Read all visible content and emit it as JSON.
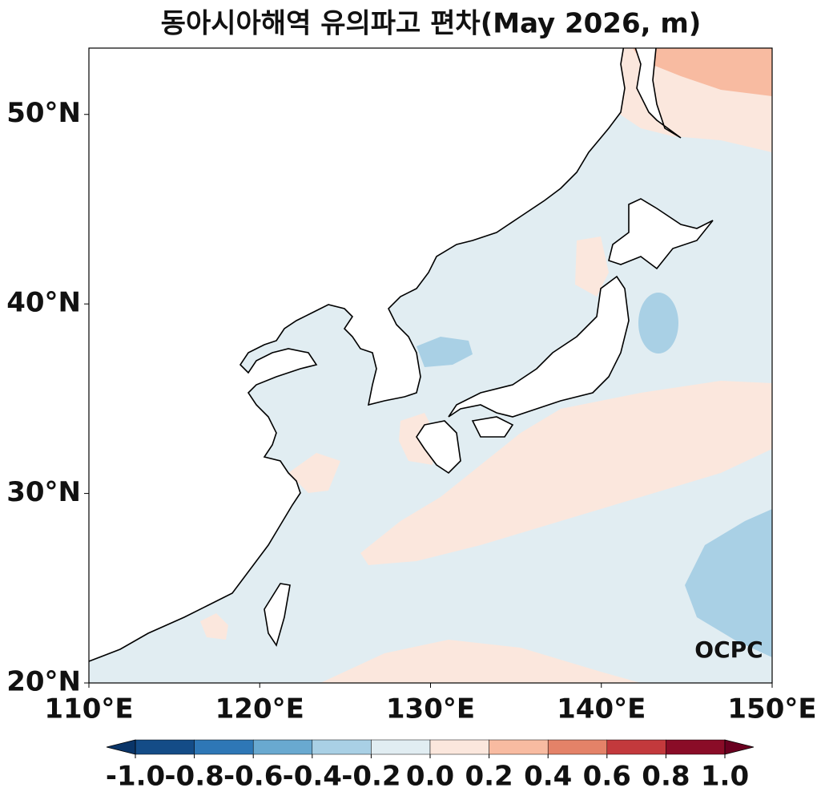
{
  "title": "동아시아해역 유의파고 편차(May 2026, m)",
  "xlim": [
    110,
    150
  ],
  "ylim": [
    20,
    53.5
  ],
  "xticks": [
    {
      "value": 110,
      "label": "110°E"
    },
    {
      "value": 120,
      "label": "120°E"
    },
    {
      "value": 130,
      "label": "130°E"
    },
    {
      "value": 140,
      "label": "140°E"
    },
    {
      "value": 150,
      "label": "150°E"
    }
  ],
  "yticks": [
    {
      "value": 20,
      "label": "20°N"
    },
    {
      "value": 30,
      "label": "30°N"
    },
    {
      "value": 40,
      "label": "40°N"
    },
    {
      "value": 50,
      "label": "50°N"
    }
  ],
  "colorbar": {
    "ticks": [
      {
        "value": -1,
        "label": "-1.0"
      },
      -0.8,
      -0.6,
      -0.4,
      -0.2,
      {
        "value": 0,
        "label": "0.0"
      },
      0.2,
      0.4,
      0.6,
      0.8,
      {
        "value": 1,
        "label": "1.0"
      }
    ],
    "colors": [
      "#144c87",
      "#2e77b6",
      "#69a9d0",
      "#a9d0e5",
      "#e1edf2",
      "#fbe7dd",
      "#f8bba1",
      "#e48268",
      "#c3393c",
      "#8a0c27"
    ],
    "under_color": "#0a3568",
    "over_color": "#6a0020"
  },
  "logo": "OCPC"
}
